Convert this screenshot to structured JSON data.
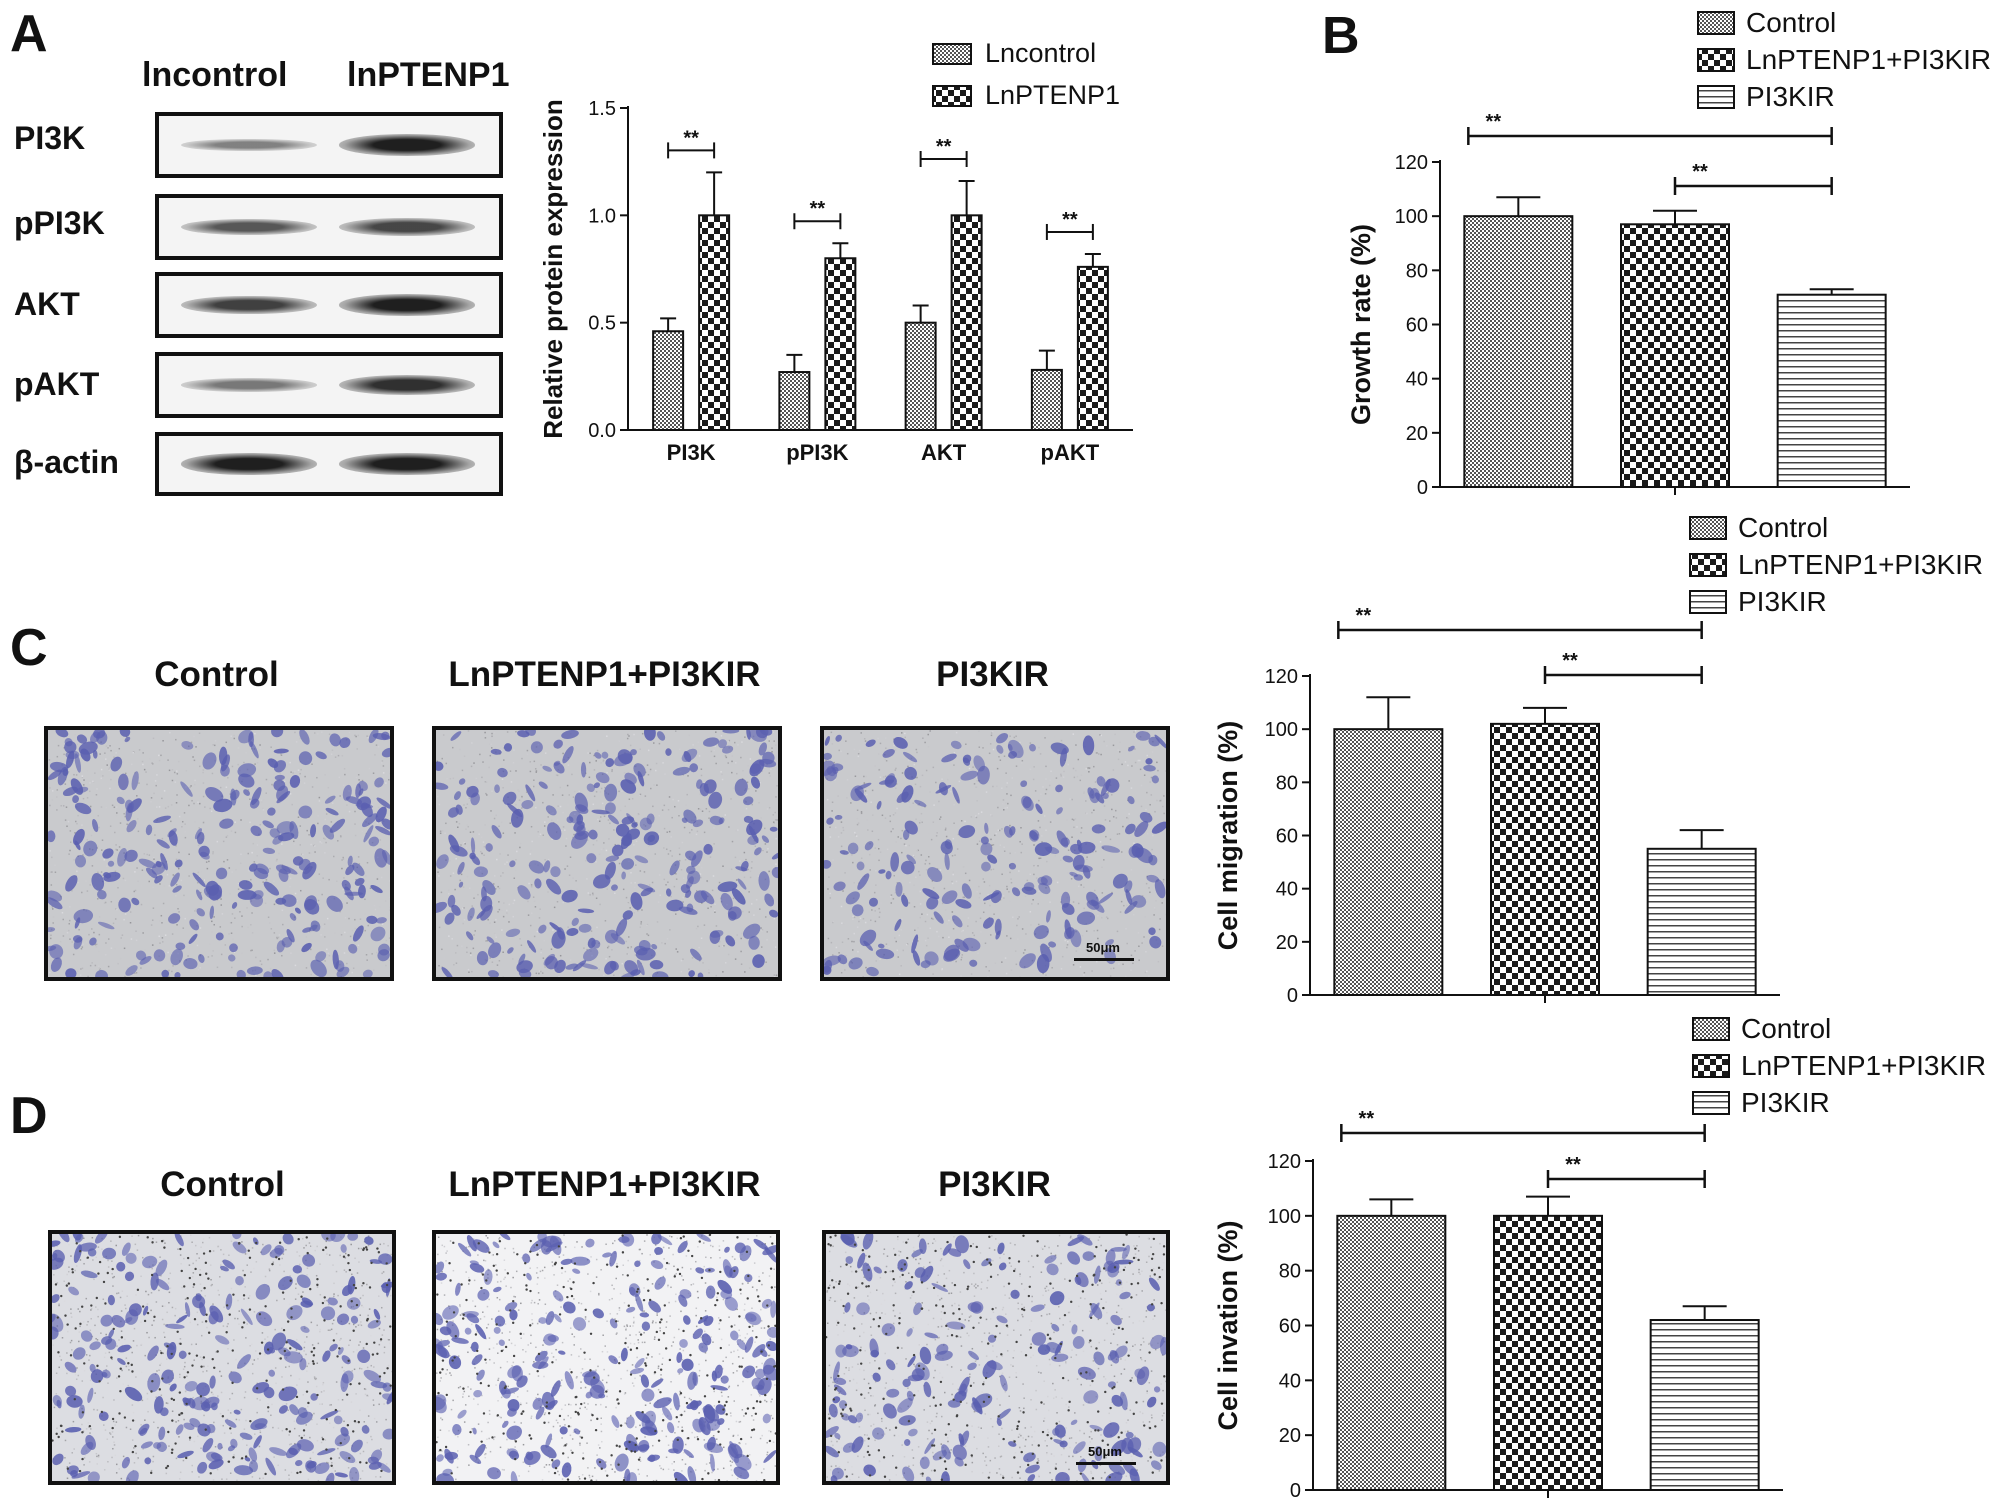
{
  "panels": {
    "A": {
      "letter": "A",
      "blot": {
        "col_headers": [
          "lncontrol",
          "lnPTENP1"
        ],
        "rows": [
          {
            "label": "PI3K",
            "intensity": [
              0.35,
              0.95
            ]
          },
          {
            "label": "pPI3K",
            "intensity": [
              0.6,
              0.7
            ]
          },
          {
            "label": "AKT",
            "intensity": [
              0.75,
              0.95
            ]
          },
          {
            "label": "pAKT",
            "intensity": [
              0.4,
              0.85
            ]
          },
          {
            "label": "β-actin",
            "intensity": [
              0.95,
              0.95
            ]
          }
        ]
      }
    },
    "B": {
      "letter": "B"
    },
    "C": {
      "letter": "C",
      "images": [
        {
          "title": "Control",
          "density": 0.55,
          "scale_label": ""
        },
        {
          "title": "LnPTENP1+PI3KIR",
          "density": 0.55,
          "scale_label": ""
        },
        {
          "title": "PI3KIR",
          "density": 0.35,
          "scale_label": "50μm"
        }
      ]
    },
    "D": {
      "letter": "D",
      "images": [
        {
          "title": "Control",
          "density": 0.5,
          "scale_label": ""
        },
        {
          "title": "LnPTENP1+PI3KIR",
          "density": 0.55,
          "scale_label": ""
        },
        {
          "title": "PI3KIR",
          "density": 0.3,
          "scale_label": "50μm"
        }
      ]
    }
  },
  "colors": {
    "fill_dark": "#2b2b2b",
    "stain": "#5a5fb0",
    "background_gray": "#cfcfcf"
  },
  "chart_data": [
    {
      "type": "bar",
      "panel": "A",
      "categories": [
        "PI3K",
        "pPI3K",
        "AKT",
        "pAKT"
      ],
      "series": [
        {
          "name": "Lncontrol",
          "pattern": "fine",
          "values": [
            0.46,
            0.27,
            0.5,
            0.28
          ],
          "errors": [
            0.06,
            0.08,
            0.08,
            0.09
          ]
        },
        {
          "name": "LnPTENP1",
          "pattern": "check",
          "values": [
            1.0,
            0.8,
            1.0,
            0.76
          ],
          "errors": [
            0.2,
            0.07,
            0.16,
            0.06
          ]
        }
      ],
      "title": "",
      "xlabel": "",
      "ylabel": "Relative protein expression",
      "ylim": [
        0,
        1.5
      ],
      "yticks": [
        "0.0",
        "0.5",
        "1.0",
        "1.5"
      ],
      "significance": [
        {
          "between": [
            0,
            0
          ],
          "label": "**"
        },
        {
          "between": [
            1,
            1
          ],
          "label": "**"
        },
        {
          "between": [
            2,
            2
          ],
          "label": "**"
        },
        {
          "between": [
            3,
            3
          ],
          "label": "**"
        }
      ],
      "legend_position": "top-right"
    },
    {
      "type": "bar",
      "panel": "B",
      "categories": [
        "Control",
        "LnPTENP1+PI3KIR",
        "PI3KIR"
      ],
      "values": [
        100,
        97,
        71
      ],
      "errors": [
        7,
        5,
        2
      ],
      "patterns": [
        "fine",
        "check",
        "hlines"
      ],
      "legend": [
        "Control",
        "LnPTENP1+PI3KIR",
        "PI3KIR"
      ],
      "title": "",
      "xlabel": "",
      "ylabel": "Growth rate (%)",
      "ylim": [
        0,
        120
      ],
      "yticks": [
        "0",
        "20",
        "40",
        "60",
        "80",
        "100",
        "120"
      ],
      "significance": [
        {
          "between": [
            0,
            2
          ],
          "label": "**"
        },
        {
          "between": [
            1,
            2
          ],
          "label": "**"
        }
      ],
      "legend_position": "top"
    },
    {
      "type": "bar",
      "panel": "C",
      "categories": [
        "Control",
        "LnPTENP1+PI3KIR",
        "PI3KIR"
      ],
      "values": [
        100,
        102,
        55
      ],
      "errors": [
        12,
        6,
        7
      ],
      "patterns": [
        "fine",
        "check",
        "hlines"
      ],
      "legend": [
        "Control",
        "LnPTENP1+PI3KIR",
        "PI3KIR"
      ],
      "title": "",
      "xlabel": "",
      "ylabel": "Cell migration (%)",
      "ylim": [
        0,
        120
      ],
      "yticks": [
        "0",
        "20",
        "40",
        "60",
        "80",
        "100",
        "120"
      ],
      "significance": [
        {
          "between": [
            0,
            2
          ],
          "label": "**"
        },
        {
          "between": [
            1,
            2
          ],
          "label": "**"
        }
      ],
      "legend_position": "top"
    },
    {
      "type": "bar",
      "panel": "D",
      "categories": [
        "Control",
        "LnPTENP1+PI3KIR",
        "PI3KIR"
      ],
      "values": [
        100,
        100,
        62
      ],
      "errors": [
        6,
        7,
        5
      ],
      "patterns": [
        "fine",
        "check",
        "hlines"
      ],
      "legend": [
        "Control",
        "LnPTENP1+PI3KIR",
        "PI3KIR"
      ],
      "title": "",
      "xlabel": "",
      "ylabel": "Cell invation (%)",
      "ylim": [
        0,
        120
      ],
      "yticks": [
        "0",
        "20",
        "40",
        "60",
        "80",
        "100",
        "120"
      ],
      "significance": [
        {
          "between": [
            0,
            2
          ],
          "label": "**"
        },
        {
          "between": [
            1,
            2
          ],
          "label": "**"
        }
      ],
      "legend_position": "top"
    }
  ]
}
